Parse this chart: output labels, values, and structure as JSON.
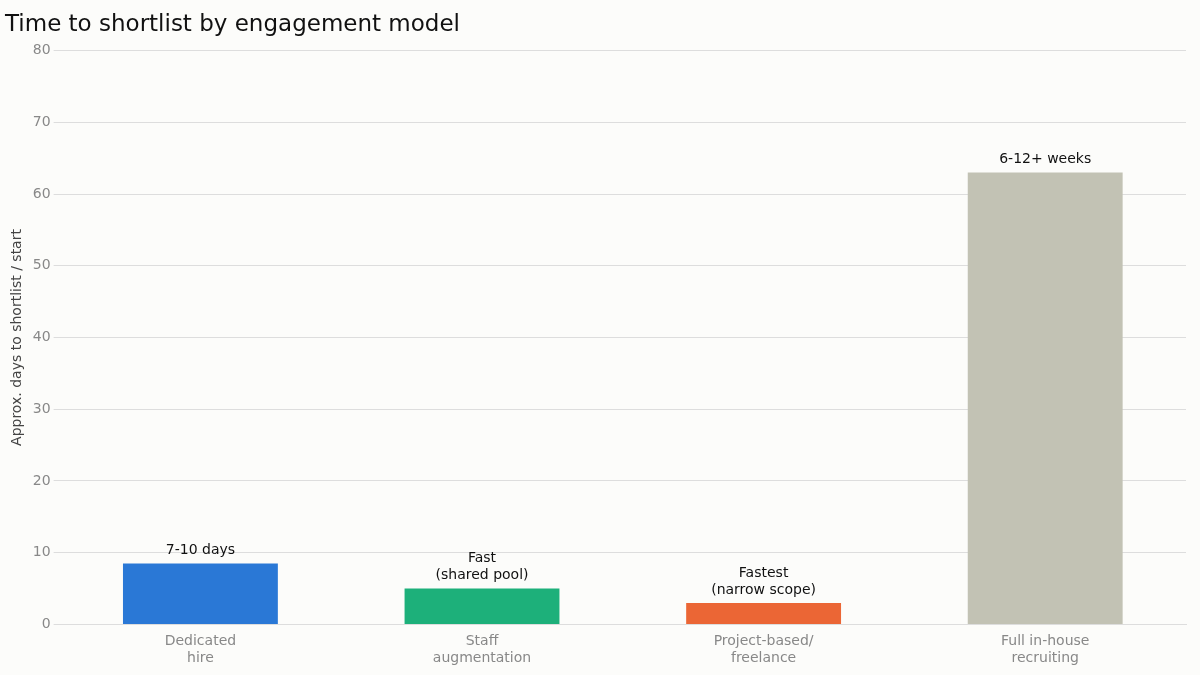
{
  "chart_data": {
    "type": "bar",
    "title": "Time to shortlist by engagement model",
    "ylabel": "Approx. days to shortlist / start",
    "categories": [
      "Dedicated\nhire",
      "Staff\naugmentation",
      "Project-based/\nfreelance",
      "Full in-house\nrecruiting"
    ],
    "values": [
      8.5,
      5,
      3,
      63
    ],
    "colors": [
      "#2a78d6",
      "#1db07a",
      "#eb6635",
      "#c2c2b4"
    ],
    "value_labels": [
      "7-10 days",
      "Fast\n(shared pool)",
      "Fastest\n(narrow scope)",
      "6-12+ weeks"
    ],
    "ylim": [
      0,
      80
    ],
    "yticks": [
      0,
      10,
      20,
      30,
      40,
      50,
      60,
      70,
      80
    ],
    "grid": "y",
    "legend": false
  }
}
